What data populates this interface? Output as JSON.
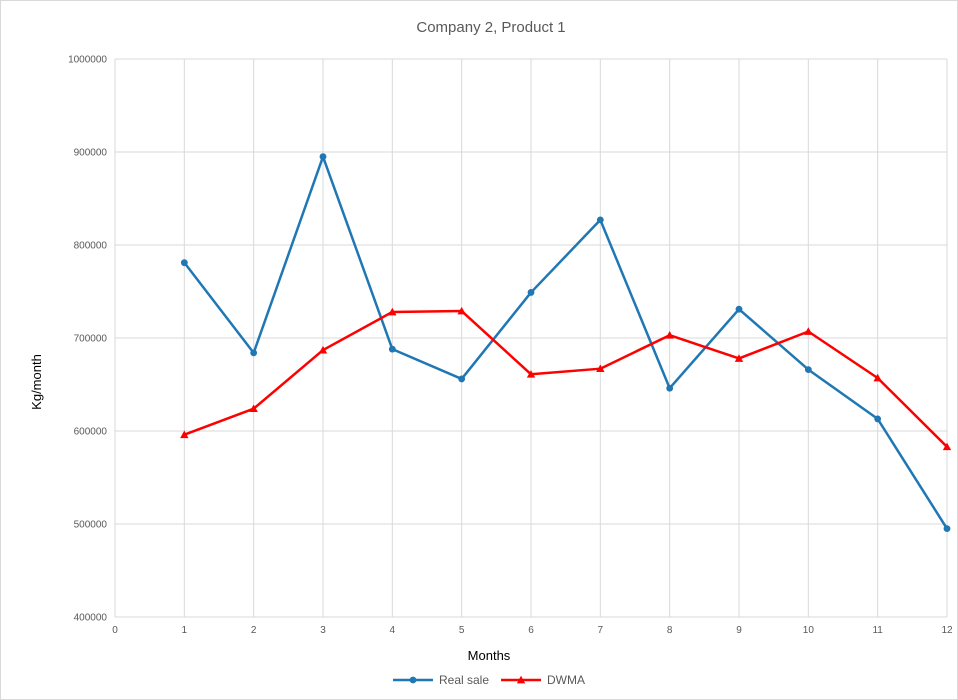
{
  "chart_data": {
    "type": "line",
    "title": "Company 2, Product 1",
    "xlabel": "Months",
    "ylabel": "Kg/month",
    "xlim": [
      0,
      12
    ],
    "ylim": [
      400000,
      1000000
    ],
    "x_ticks": [
      0,
      1,
      2,
      3,
      4,
      5,
      6,
      7,
      8,
      9,
      10,
      11,
      12
    ],
    "y_ticks": [
      400000,
      500000,
      600000,
      700000,
      800000,
      900000,
      1000000
    ],
    "grid": true,
    "legend_position": "bottom",
    "series": [
      {
        "name": "Real sale",
        "color": "#1f77b4",
        "marker": "circle",
        "x": [
          1,
          2,
          3,
          4,
          5,
          6,
          7,
          8,
          9,
          10,
          11,
          12
        ],
        "values": [
          781000,
          684000,
          895000,
          688000,
          656000,
          749000,
          827000,
          646000,
          731000,
          666000,
          613000,
          495000
        ]
      },
      {
        "name": "DWMA",
        "color": "#ff0000",
        "marker": "triangle",
        "x": [
          1,
          2,
          3,
          4,
          5,
          6,
          7,
          8,
          9,
          10,
          11,
          12
        ],
        "values": [
          596000,
          624000,
          687000,
          728000,
          729000,
          661000,
          667000,
          703000,
          678000,
          707000,
          657000,
          583000
        ]
      }
    ]
  }
}
